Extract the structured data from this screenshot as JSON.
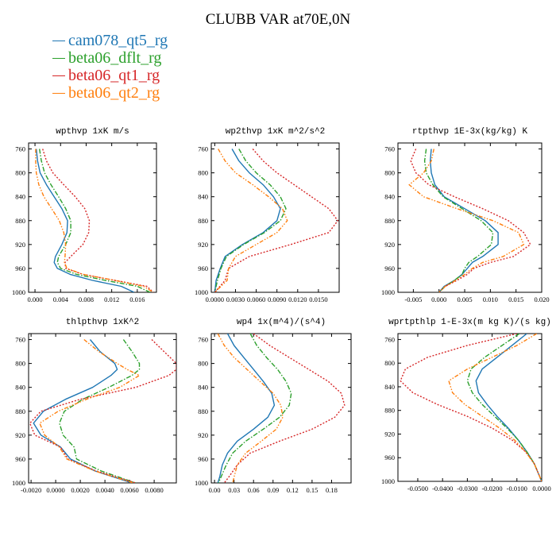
{
  "figure": {
    "title": "CLUBB VAR at70E,0N"
  },
  "legend": [
    {
      "name": "cam078_qt5_rg",
      "color": "#1f77b4"
    },
    {
      "name": "beta06_dflt_rg",
      "color": "#2ca02c"
    },
    {
      "name": "beta06_qt1_rg",
      "color": "#d62728"
    },
    {
      "name": "beta06_qt2_rg",
      "color": "#ff7f0e"
    }
  ],
  "chart_data": [
    {
      "type": "line",
      "title": "wpthvp 1xK m/s",
      "xlim": [
        -0.001,
        0.019
      ],
      "ylim": [
        1000,
        750
      ],
      "xticks": [
        0.0,
        0.004,
        0.008,
        0.012,
        0.016
      ],
      "xticklabels": [
        "0.000",
        "0.004",
        "0.008",
        "0.012",
        "0.016"
      ],
      "yticks": [
        760,
        800,
        840,
        880,
        920,
        960,
        1000
      ],
      "y": [
        760,
        780,
        800,
        820,
        840,
        860,
        880,
        900,
        920,
        940,
        950,
        960,
        970,
        980,
        990,
        1000
      ],
      "series": [
        {
          "name": "cam078_qt5_rg",
          "values": [
            0.0002,
            0.0004,
            0.0008,
            0.0018,
            0.003,
            0.0042,
            0.0051,
            0.005,
            0.0042,
            0.0032,
            0.003,
            0.0035,
            0.0055,
            0.009,
            0.0135,
            0.0155
          ]
        },
        {
          "name": "beta06_dflt_rg",
          "values": [
            0.0007,
            0.001,
            0.0015,
            0.0025,
            0.0037,
            0.0048,
            0.0056,
            0.0056,
            0.0048,
            0.0037,
            0.0035,
            0.004,
            0.0065,
            0.011,
            0.016,
            0.018
          ]
        },
        {
          "name": "beta06_qt1_rg",
          "values": [
            0.0012,
            0.0018,
            0.0028,
            0.0045,
            0.0063,
            0.0078,
            0.0085,
            0.0084,
            0.0075,
            0.0056,
            0.0047,
            0.0048,
            0.0075,
            0.0125,
            0.0175,
            0.0185
          ]
        },
        {
          "name": "beta06_qt2_rg",
          "values": [
            0.0001,
            0.0001,
            0.0002,
            0.0006,
            0.0014,
            0.0026,
            0.0038,
            0.0045,
            0.0048,
            0.0047,
            0.0046,
            0.005,
            0.0075,
            0.0125,
            0.017,
            0.0185
          ]
        }
      ]
    },
    {
      "type": "line",
      "title": "wp2thvp 1xK m^2/s^2",
      "xlim": [
        -0.0005,
        0.018
      ],
      "ylim": [
        1000,
        750
      ],
      "xticks": [
        0.0,
        0.003,
        0.006,
        0.009,
        0.012,
        0.015
      ],
      "xticklabels": [
        "0.0000",
        "0.0030",
        "0.0060",
        "0.0090",
        "0.0120",
        "0.0150"
      ],
      "yticks": [
        760,
        800,
        840,
        880,
        920,
        960,
        1000
      ],
      "y": [
        760,
        780,
        800,
        820,
        840,
        860,
        880,
        900,
        920,
        940,
        960,
        980,
        1000
      ],
      "series": [
        {
          "name": "cam078_qt5_rg",
          "values": [
            0.0025,
            0.0035,
            0.005,
            0.007,
            0.0085,
            0.0095,
            0.009,
            0.007,
            0.004,
            0.0015,
            0.0008,
            0.0002,
            0.0
          ]
        },
        {
          "name": "beta06_dflt_rg",
          "values": [
            0.0035,
            0.0045,
            0.006,
            0.008,
            0.0095,
            0.0103,
            0.0095,
            0.0072,
            0.0042,
            0.0017,
            0.0009,
            0.0004,
            0.0
          ]
        },
        {
          "name": "beta06_qt1_rg",
          "values": [
            0.0055,
            0.007,
            0.009,
            0.0115,
            0.014,
            0.0165,
            0.0178,
            0.0165,
            0.011,
            0.005,
            0.002,
            0.0015,
            0.0
          ]
        },
        {
          "name": "beta06_qt2_rg",
          "values": [
            0.0005,
            0.0015,
            0.003,
            0.0055,
            0.0078,
            0.0098,
            0.0105,
            0.009,
            0.006,
            0.003,
            0.002,
            0.0018,
            0.0
          ]
        }
      ]
    },
    {
      "type": "line",
      "title": "rtpthvp 1E-3x(kg/kg) K",
      "xlim": [
        -0.008,
        0.02
      ],
      "ylim": [
        1000,
        750
      ],
      "xticks": [
        -0.005,
        0.0,
        0.005,
        0.01,
        0.015,
        0.02
      ],
      "xticklabels": [
        "-0.005",
        "0.000",
        "0.005",
        "0.010",
        "0.015",
        "0.020"
      ],
      "yticks": [
        760,
        800,
        840,
        880,
        920,
        960,
        1000
      ],
      "y": [
        760,
        780,
        800,
        820,
        840,
        860,
        880,
        900,
        920,
        940,
        950,
        960,
        970,
        980,
        990,
        1000
      ],
      "series": [
        {
          "name": "cam078_qt5_rg",
          "values": [
            -0.0015,
            -0.0017,
            -0.0015,
            -0.0008,
            0.001,
            0.005,
            0.009,
            0.0115,
            0.0115,
            0.0085,
            0.0065,
            0.0055,
            0.0045,
            0.003,
            0.001,
            0.0
          ]
        },
        {
          "name": "beta06_dflt_rg",
          "values": [
            -0.0025,
            -0.0028,
            -0.0025,
            -0.0012,
            0.0008,
            0.0045,
            0.0082,
            0.0105,
            0.0102,
            0.0075,
            0.0058,
            0.005,
            0.0045,
            0.003,
            0.0012,
            0.0
          ]
        },
        {
          "name": "beta06_qt1_rg",
          "values": [
            -0.0045,
            -0.0055,
            -0.0045,
            -0.002,
            0.003,
            0.0085,
            0.0135,
            0.0165,
            0.0178,
            0.0145,
            0.01,
            0.0068,
            0.0055,
            0.0035,
            0.0012,
            0.0
          ]
        },
        {
          "name": "beta06_qt2_rg",
          "values": [
            -0.001,
            -0.0015,
            -0.003,
            -0.0058,
            -0.003,
            0.0035,
            0.0105,
            0.0155,
            0.0165,
            0.0125,
            0.0085,
            0.0065,
            0.005,
            0.0032,
            0.0012,
            0.0
          ]
        }
      ]
    },
    {
      "type": "line",
      "title": "thlpthvp 1xK^2",
      "xlim": [
        -0.0022,
        0.0098
      ],
      "ylim": [
        1000,
        750
      ],
      "xticks": [
        -0.002,
        0.0,
        0.002,
        0.004,
        0.006,
        0.008
      ],
      "xticklabels": [
        "-0.0020",
        "0.0000",
        "0.0020",
        "0.0040",
        "0.0060",
        "0.0080"
      ],
      "yticks": [
        760,
        800,
        840,
        880,
        920,
        960,
        1000
      ],
      "y": [
        760,
        780,
        800,
        810,
        820,
        840,
        860,
        880,
        900,
        920,
        940,
        960,
        980,
        1000
      ],
      "series": [
        {
          "name": "cam078_qt5_rg",
          "values": [
            0.0028,
            0.0036,
            0.0048,
            0.005,
            0.0045,
            0.003,
            0.0008,
            -0.001,
            -0.0018,
            -0.0012,
            0.0004,
            0.0012,
            0.0032,
            0.0062
          ]
        },
        {
          "name": "beta06_dflt_rg",
          "values": [
            0.0055,
            0.0062,
            0.0068,
            0.0068,
            0.0062,
            0.0043,
            0.0022,
            0.0007,
            0.0003,
            0.0006,
            0.0015,
            0.0017,
            0.0037,
            0.0065
          ]
        },
        {
          "name": "beta06_qt1_rg",
          "values": [
            0.0078,
            0.0088,
            0.0098,
            0.0098,
            0.0092,
            0.0065,
            0.002,
            -0.0012,
            -0.0021,
            -0.0017,
            0.0004,
            0.001,
            0.0033,
            0.0065
          ]
        },
        {
          "name": "beta06_qt2_rg",
          "values": [
            0.0023,
            0.0035,
            0.005,
            0.0058,
            0.0068,
            0.0052,
            0.0025,
            0.0002,
            -0.0013,
            -0.0009,
            0.0003,
            0.0009,
            0.0032,
            0.0063
          ]
        }
      ]
    },
    {
      "type": "line",
      "title": "wp4 1x(m^4)/(s^4)",
      "xlim": [
        -0.005,
        0.21
      ],
      "ylim": [
        1000,
        750
      ],
      "xticks": [
        0.0,
        0.03,
        0.06,
        0.09,
        0.12,
        0.15,
        0.18
      ],
      "xticklabels": [
        "0.00",
        "0.03",
        "0.06",
        "0.09",
        "0.12",
        "0.15",
        "0.18"
      ],
      "yticks": [
        760,
        800,
        840,
        880,
        920,
        960,
        1000
      ],
      "y": [
        750,
        770,
        790,
        810,
        830,
        850,
        870,
        890,
        910,
        930,
        950,
        970,
        990,
        1000
      ],
      "series": [
        {
          "name": "cam078_qt5_rg",
          "values": [
            0.02,
            0.03,
            0.045,
            0.06,
            0.075,
            0.088,
            0.092,
            0.082,
            0.06,
            0.035,
            0.02,
            0.012,
            0.008,
            0.005
          ]
        },
        {
          "name": "beta06_dflt_rg",
          "values": [
            0.055,
            0.065,
            0.08,
            0.097,
            0.11,
            0.118,
            0.115,
            0.1,
            0.075,
            0.048,
            0.028,
            0.018,
            0.01,
            0.006
          ]
        },
        {
          "name": "beta06_qt1_rg",
          "values": [
            0.06,
            0.085,
            0.115,
            0.145,
            0.175,
            0.195,
            0.2,
            0.185,
            0.15,
            0.1,
            0.055,
            0.035,
            0.022,
            0.015
          ]
        },
        {
          "name": "beta06_qt2_rg",
          "values": [
            0.005,
            0.015,
            0.03,
            0.05,
            0.07,
            0.09,
            0.102,
            0.105,
            0.095,
            0.072,
            0.048,
            0.035,
            0.03,
            0.028
          ]
        }
      ]
    },
    {
      "type": "line",
      "title": "wprtpthlp 1-E-3x(m kg K)/(s kg)",
      "xlim": [
        -0.058,
        0.0
      ],
      "ylim": [
        1000,
        750
      ],
      "xticks": [
        -0.05,
        -0.04,
        -0.03,
        -0.02,
        -0.01,
        0.0
      ],
      "xticklabels": [
        "-0.0500",
        "-0.0400",
        "-0.0300",
        "-0.0200",
        "-0.0100",
        "0.0000"
      ],
      "yticks": [
        760,
        800,
        840,
        880,
        920,
        960,
        1000
      ],
      "y": [
        750,
        770,
        790,
        810,
        830,
        850,
        870,
        890,
        910,
        930,
        950,
        970,
        990,
        1000
      ],
      "series": [
        {
          "name": "cam078_qt5_rg",
          "values": [
            -0.006,
            -0.012,
            -0.018,
            -0.024,
            -0.0265,
            -0.0255,
            -0.022,
            -0.018,
            -0.0135,
            -0.0095,
            -0.006,
            -0.003,
            -0.001,
            0.0
          ]
        },
        {
          "name": "beta06_dflt_rg",
          "values": [
            -0.009,
            -0.016,
            -0.023,
            -0.0285,
            -0.03,
            -0.028,
            -0.024,
            -0.019,
            -0.014,
            -0.0095,
            -0.006,
            -0.003,
            -0.001,
            0.0
          ]
        },
        {
          "name": "beta06_qt1_rg",
          "values": [
            -0.01,
            -0.03,
            -0.046,
            -0.055,
            -0.057,
            -0.052,
            -0.042,
            -0.03,
            -0.02,
            -0.012,
            -0.0065,
            -0.003,
            -0.001,
            0.0
          ]
        },
        {
          "name": "beta06_qt2_rg",
          "values": [
            -0.002,
            -0.01,
            -0.02,
            -0.03,
            -0.0375,
            -0.036,
            -0.031,
            -0.024,
            -0.017,
            -0.011,
            -0.0065,
            -0.003,
            -0.001,
            0.0
          ]
        }
      ]
    }
  ]
}
